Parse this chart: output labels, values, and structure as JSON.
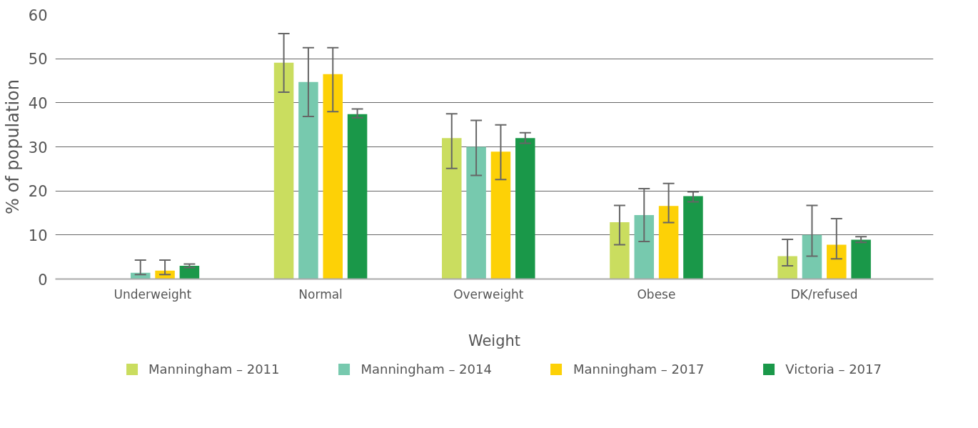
{
  "chart_data": {
    "type": "bar",
    "xlabel": "Weight",
    "ylabel": "% of population",
    "categories": [
      "Underweight",
      "Normal",
      "Overweight",
      "Obese",
      "DK/refused"
    ],
    "ylim": [
      0,
      60
    ],
    "yticks": [
      0,
      10,
      20,
      30,
      40,
      50,
      60
    ],
    "grid": "y",
    "legend": "bottom",
    "series": [
      {
        "name": "Manningham – 2011",
        "color": "#cadd5f",
        "values": [
          null,
          49.1,
          32.0,
          12.9,
          5.2
        ],
        "errors": [
          null,
          [
            42.4,
            55.7
          ],
          [
            25.1,
            37.5
          ],
          [
            7.8,
            16.7
          ],
          [
            3.0,
            9.0
          ]
        ]
      },
      {
        "name": "Manningham – 2014",
        "color": "#77c9ae",
        "values": [
          1.4,
          44.7,
          30.0,
          14.5,
          10.0
        ],
        "errors": [
          [
            1.0,
            4.3
          ],
          [
            36.9,
            52.5
          ],
          [
            23.5,
            36.0
          ],
          [
            8.5,
            20.5
          ],
          [
            5.2,
            16.7
          ]
        ]
      },
      {
        "name": "Manningham – 2017",
        "color": "#fdd106",
        "values": [
          1.9,
          46.5,
          28.9,
          16.6,
          7.8
        ],
        "errors": [
          [
            1.0,
            4.3
          ],
          [
            38.0,
            52.5
          ],
          [
            22.6,
            35.0
          ],
          [
            12.8,
            21.7
          ],
          [
            4.6,
            13.7
          ]
        ]
      },
      {
        "name": "Victoria – 2017",
        "color": "#1a9849",
        "values": [
          3.0,
          37.4,
          32.0,
          18.8,
          8.9
        ],
        "errors": [
          [
            2.6,
            3.4
          ],
          [
            36.6,
            38.6
          ],
          [
            30.8,
            33.2
          ],
          [
            17.5,
            19.8
          ],
          [
            8.3,
            9.6
          ]
        ]
      }
    ]
  }
}
